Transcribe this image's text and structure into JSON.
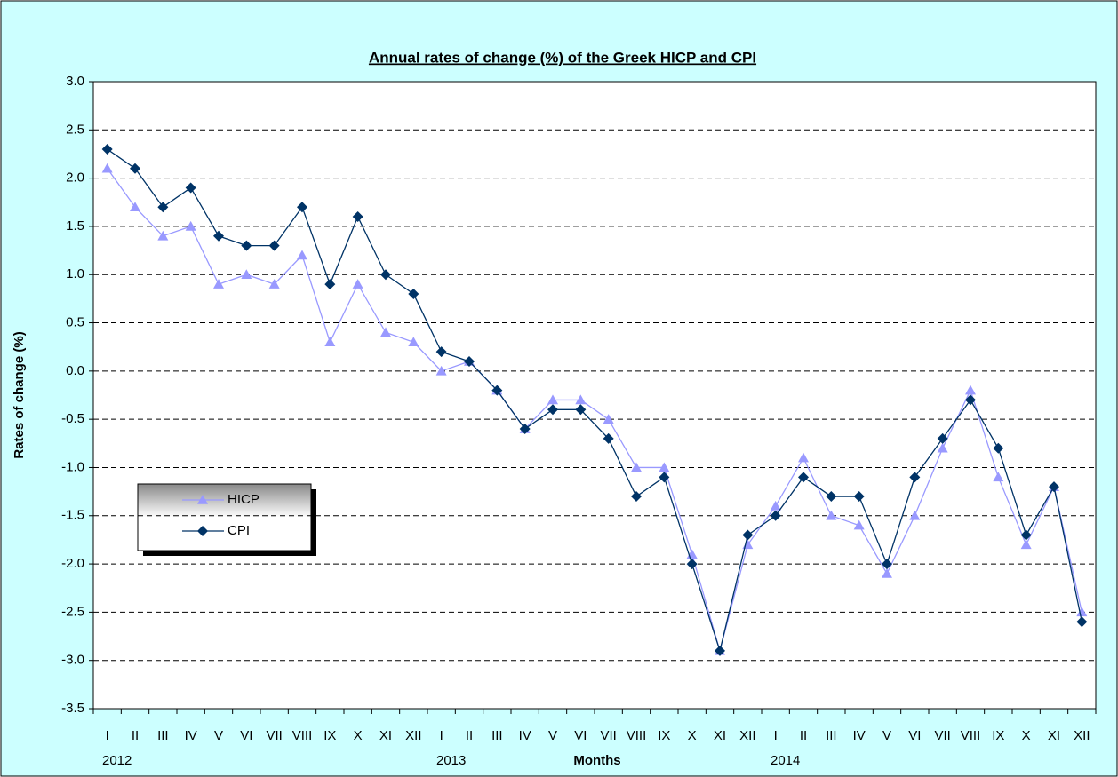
{
  "chart_data": {
    "type": "line",
    "title": "Annual rates of change (%) of the Greek HICP and CPI",
    "x_label": "Months",
    "y_label": "Rates of change (%)",
    "categories": [
      "I",
      "II",
      "III",
      "IV",
      "V",
      "VI",
      "VII",
      "VIII",
      "IX",
      "X",
      "XI",
      "XII",
      "I",
      "II",
      "III",
      "IV",
      "V",
      "VI",
      "VII",
      "VIII",
      "IX",
      "X",
      "XI",
      "XII",
      "I",
      "II",
      "III",
      "IV",
      "V",
      "VI",
      "VII",
      "VIII",
      "IX",
      "X",
      "XI",
      "XII"
    ],
    "years": [
      "2012",
      "2013",
      "2014"
    ],
    "series": [
      {
        "name": "HICP",
        "color": "#9999ff",
        "marker": "triangle",
        "values": [
          2.1,
          1.7,
          1.4,
          1.5,
          0.9,
          1.0,
          0.9,
          1.2,
          0.3,
          0.9,
          0.4,
          0.3,
          0.0,
          0.1,
          -0.2,
          -0.6,
          -0.3,
          -0.3,
          -0.5,
          -1.0,
          -1.0,
          -1.9,
          -2.9,
          -1.8,
          -1.4,
          -0.9,
          -1.5,
          -1.6,
          -2.1,
          -1.5,
          -0.8,
          -0.2,
          -1.1,
          -1.8,
          -1.2,
          -2.5
        ]
      },
      {
        "name": "CPI",
        "color": "#003366",
        "marker": "diamond",
        "values": [
          2.3,
          2.1,
          1.7,
          1.9,
          1.4,
          1.3,
          1.3,
          1.7,
          0.9,
          1.6,
          1.0,
          0.8,
          0.2,
          0.1,
          -0.2,
          -0.6,
          -0.4,
          -0.4,
          -0.7,
          -1.3,
          -1.1,
          -2.0,
          -2.9,
          -1.7,
          -1.5,
          -1.1,
          -1.3,
          -1.3,
          -2.0,
          -1.1,
          -0.7,
          -0.3,
          -0.8,
          -1.7,
          -1.2,
          -2.6
        ]
      }
    ],
    "ylim": [
      -3.5,
      3.0
    ],
    "yticks": [
      {
        "value": 3,
        "label": "3.0"
      },
      2.5,
      {
        "value": 2,
        "label": "2.0"
      },
      1.5,
      {
        "value": 1,
        "label": "1.0"
      },
      0.5,
      {
        "value": 0,
        "label": "0.0"
      },
      -0.5,
      {
        "value": -1,
        "label": "-1.0"
      },
      -1.5,
      {
        "value": -2,
        "label": "-2.0"
      },
      -2.5,
      {
        "value": -3,
        "label": "-3.0"
      },
      -3.5
    ],
    "grid": true
  }
}
